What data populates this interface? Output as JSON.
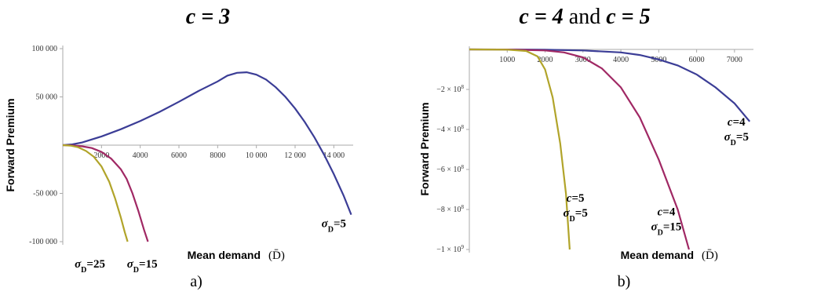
{
  "chart_data": [
    {
      "type": "line",
      "panel_label": "a)",
      "title": {
        "bold": "c = 3",
        "rest": ""
      },
      "ylabel": "Forward Premium",
      "xlabel": "Mean demand",
      "xlabel_symbol": "(D̄)",
      "xlim": [
        0,
        15000
      ],
      "ylim": [
        -100000,
        100000
      ],
      "x_ticks": [
        {
          "v": 2000,
          "label": "2000"
        },
        {
          "v": 4000,
          "label": "4000"
        },
        {
          "v": 6000,
          "label": "6000"
        },
        {
          "v": 8000,
          "label": "8000"
        },
        {
          "v": 10000,
          "label": "10 000"
        },
        {
          "v": 12000,
          "label": "12 000"
        },
        {
          "v": 14000,
          "label": "14 000"
        }
      ],
      "y_ticks": [
        {
          "v": 100000,
          "label": "100 000"
        },
        {
          "v": 50000,
          "label": "50 000"
        },
        {
          "v": -50000,
          "label": "-50 000"
        },
        {
          "v": -100000,
          "label": "-100 000"
        }
      ],
      "series": [
        {
          "label_parts": [
            {
              "t": "σ",
              "i": true
            },
            {
              "t": "D",
              "sub": true
            },
            {
              "t": "=5"
            }
          ],
          "color": "#3b3d96",
          "label_at": [
            14000,
            -85000
          ],
          "points": [
            [
              0,
              0
            ],
            [
              500,
              800
            ],
            [
              1000,
              2800
            ],
            [
              2000,
              9000
            ],
            [
              3000,
              16500
            ],
            [
              4000,
              25000
            ],
            [
              5000,
              34500
            ],
            [
              6000,
              45000
            ],
            [
              7000,
              56000
            ],
            [
              8000,
              66000
            ],
            [
              8500,
              72000
            ],
            [
              9000,
              75000
            ],
            [
              9500,
              75500
            ],
            [
              10000,
              73000
            ],
            [
              10500,
              68000
            ],
            [
              11000,
              60000
            ],
            [
              11500,
              50000
            ],
            [
              12000,
              38000
            ],
            [
              12500,
              24000
            ],
            [
              13000,
              8000
            ],
            [
              13500,
              -10000
            ],
            [
              14000,
              -30000
            ],
            [
              14500,
              -52000
            ],
            [
              14900,
              -72000
            ]
          ]
        },
        {
          "label_parts": [
            {
              "t": "σ",
              "i": true
            },
            {
              "t": "D",
              "sub": true
            },
            {
              "t": "=15"
            }
          ],
          "color": "#a02864",
          "label_at": [
            4100,
            -127000
          ],
          "points": [
            [
              0,
              0
            ],
            [
              500,
              -300
            ],
            [
              1000,
              -1200
            ],
            [
              1500,
              -3000
            ],
            [
              2000,
              -7000
            ],
            [
              2500,
              -14000
            ],
            [
              3000,
              -25000
            ],
            [
              3300,
              -35000
            ],
            [
              3600,
              -50000
            ],
            [
              3900,
              -68000
            ],
            [
              4200,
              -88000
            ],
            [
              4400,
              -100000
            ]
          ]
        },
        {
          "label_parts": [
            {
              "t": "σ",
              "i": true
            },
            {
              "t": "D",
              "sub": true
            },
            {
              "t": "=25"
            }
          ],
          "color": "#b1a42a",
          "label_at": [
            1400,
            -127000
          ],
          "points": [
            [
              0,
              0
            ],
            [
              400,
              -500
            ],
            [
              800,
              -2200
            ],
            [
              1200,
              -6000
            ],
            [
              1600,
              -12000
            ],
            [
              2000,
              -22000
            ],
            [
              2400,
              -38000
            ],
            [
              2700,
              -55000
            ],
            [
              3000,
              -75000
            ],
            [
              3200,
              -90000
            ],
            [
              3350,
              -100000
            ]
          ]
        }
      ]
    },
    {
      "type": "line",
      "panel_label": "b)",
      "title": {
        "bold": "c = 4",
        "rest": " and ",
        "bold2": "c = 5"
      },
      "ylabel": "Forward Premium",
      "xlabel": "Mean demand",
      "xlabel_symbol": "(D̄)",
      "xlim": [
        0,
        7500
      ],
      "ylim": [
        -1000000000,
        0
      ],
      "x_ticks": [
        {
          "v": 1000,
          "label": "1000"
        },
        {
          "v": 2000,
          "label": "2000"
        },
        {
          "v": 3000,
          "label": "3000"
        },
        {
          "v": 4000,
          "label": "4000"
        },
        {
          "v": 5000,
          "label": "5000"
        },
        {
          "v": 6000,
          "label": "6000"
        },
        {
          "v": 7000,
          "label": "7000"
        }
      ],
      "y_ticks": [
        {
          "v": -200000000,
          "label": "−2 × 10",
          "exp": "8"
        },
        {
          "v": -400000000,
          "label": "−4 × 10",
          "exp": "8"
        },
        {
          "v": -600000000,
          "label": "−6 × 10",
          "exp": "8"
        },
        {
          "v": -800000000,
          "label": "−8 × 10",
          "exp": "8"
        },
        {
          "v": -1000000000,
          "label": "−1 × 10",
          "exp": "9"
        }
      ],
      "series": [
        {
          "label_parts": [
            {
              "t": "c",
              "i": true
            },
            {
              "t": "=4"
            }
          ],
          "label2_parts": [
            {
              "t": "σ",
              "i": true
            },
            {
              "t": "D",
              "sub": true
            },
            {
              "t": "=5"
            }
          ],
          "color": "#3b3d96",
          "label_at": [
            7050,
            -380000000
          ],
          "points": [
            [
              0,
              0
            ],
            [
              1000,
              -200000
            ],
            [
              2000,
              -1500000
            ],
            [
              3000,
              -5000000
            ],
            [
              4000,
              -15000000
            ],
            [
              4500,
              -28000000
            ],
            [
              5000,
              -50000000
            ],
            [
              5500,
              -80000000
            ],
            [
              6000,
              -125000000
            ],
            [
              6500,
              -190000000
            ],
            [
              7000,
              -270000000
            ],
            [
              7400,
              -360000000
            ]
          ]
        },
        {
          "label_parts": [
            {
              "t": "c",
              "i": true
            },
            {
              "t": "=4"
            }
          ],
          "label2_parts": [
            {
              "t": "σ",
              "i": true
            },
            {
              "t": "D",
              "sub": true
            },
            {
              "t": "=15"
            }
          ],
          "color": "#a02864",
          "label_at": [
            5200,
            -830000000
          ],
          "points": [
            [
              0,
              0
            ],
            [
              1000,
              -500000
            ],
            [
              2000,
              -5000000
            ],
            [
              2500,
              -15000000
            ],
            [
              3000,
              -40000000
            ],
            [
              3500,
              -95000000
            ],
            [
              4000,
              -190000000
            ],
            [
              4500,
              -340000000
            ],
            [
              5000,
              -550000000
            ],
            [
              5500,
              -800000000
            ],
            [
              5800,
              -1000000000
            ]
          ]
        },
        {
          "label_parts": [
            {
              "t": "c",
              "i": true
            },
            {
              "t": "=5"
            }
          ],
          "label2_parts": [
            {
              "t": "σ",
              "i": true
            },
            {
              "t": "D",
              "sub": true
            },
            {
              "t": "=5"
            }
          ],
          "color": "#b1a42a",
          "label_at": [
            2800,
            -760000000
          ],
          "points": [
            [
              0,
              0
            ],
            [
              1000,
              -1000000
            ],
            [
              1500,
              -8000000
            ],
            [
              1800,
              -35000000
            ],
            [
              2000,
              -100000000
            ],
            [
              2200,
              -240000000
            ],
            [
              2400,
              -470000000
            ],
            [
              2550,
              -720000000
            ],
            [
              2650,
              -1000000000
            ]
          ]
        }
      ]
    }
  ]
}
